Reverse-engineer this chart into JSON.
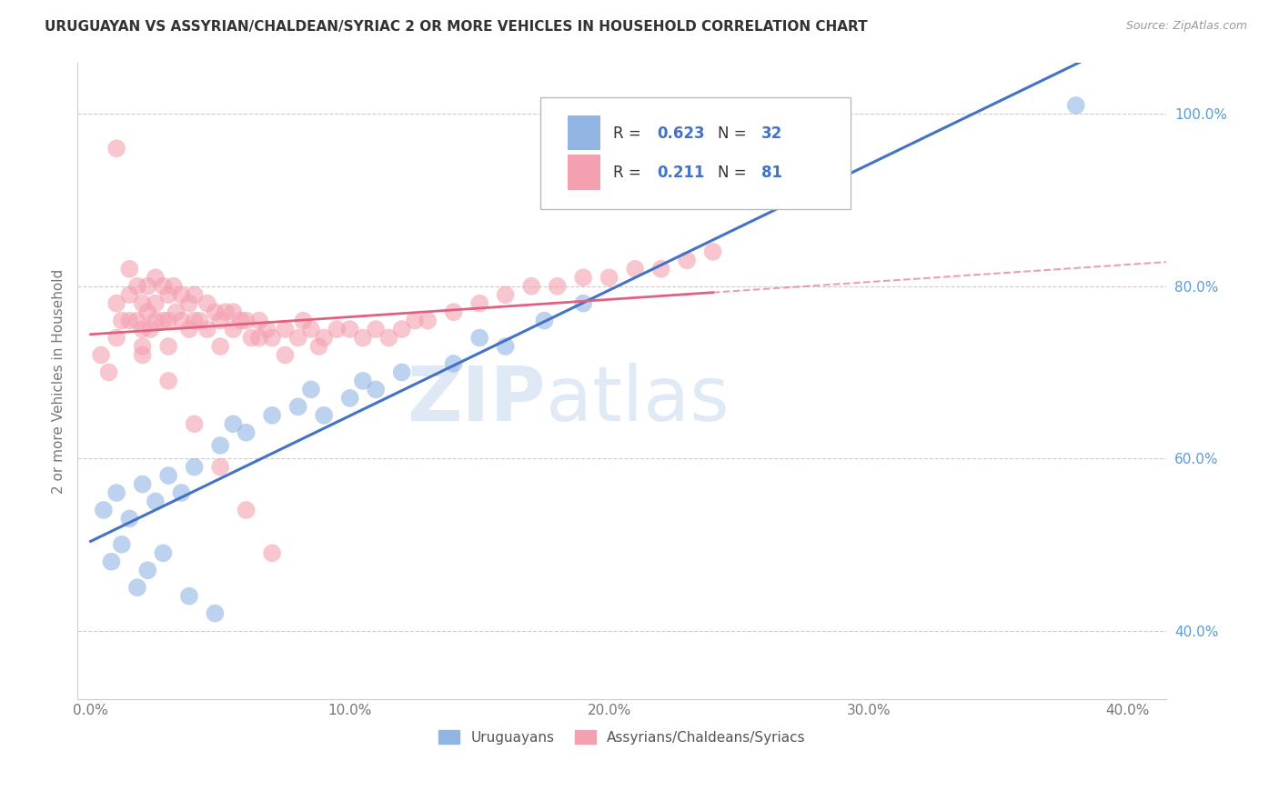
{
  "title": "URUGUAYAN VS ASSYRIAN/CHALDEAN/SYRIAC 2 OR MORE VEHICLES IN HOUSEHOLD CORRELATION CHART",
  "source": "Source: ZipAtlas.com",
  "ylabel": "2 or more Vehicles in Household",
  "xlim": [
    -0.005,
    0.415
  ],
  "ylim": [
    0.32,
    1.06
  ],
  "watermark_zip": "ZIP",
  "watermark_atlas": "atlas",
  "blue_R": "0.623",
  "blue_N": "32",
  "pink_R": "0.211",
  "pink_N": "81",
  "blue_color": "#92B4E3",
  "pink_color": "#F4A0B0",
  "blue_line_color": "#4472C4",
  "pink_line_color": "#E06080",
  "blue_label": "Uruguayans",
  "pink_label": "Assyrians/Chaldeans/Syriacs",
  "blue_scatter_x": [
    0.005,
    0.01,
    0.015,
    0.02,
    0.025,
    0.03,
    0.035,
    0.04,
    0.05,
    0.055,
    0.06,
    0.07,
    0.08,
    0.085,
    0.09,
    0.1,
    0.105,
    0.11,
    0.12,
    0.14,
    0.15,
    0.16,
    0.175,
    0.19,
    0.008,
    0.012,
    0.018,
    0.022,
    0.028,
    0.038,
    0.048,
    0.38
  ],
  "blue_scatter_y": [
    0.54,
    0.56,
    0.53,
    0.57,
    0.55,
    0.58,
    0.56,
    0.59,
    0.615,
    0.64,
    0.63,
    0.65,
    0.66,
    0.68,
    0.65,
    0.67,
    0.69,
    0.68,
    0.7,
    0.71,
    0.74,
    0.73,
    0.76,
    0.78,
    0.48,
    0.5,
    0.45,
    0.47,
    0.49,
    0.44,
    0.42,
    1.01
  ],
  "pink_scatter_x": [
    0.004,
    0.007,
    0.01,
    0.01,
    0.012,
    0.015,
    0.015,
    0.015,
    0.018,
    0.018,
    0.02,
    0.02,
    0.02,
    0.022,
    0.022,
    0.023,
    0.025,
    0.025,
    0.025,
    0.028,
    0.028,
    0.03,
    0.03,
    0.03,
    0.032,
    0.033,
    0.035,
    0.035,
    0.038,
    0.038,
    0.04,
    0.04,
    0.042,
    0.045,
    0.045,
    0.048,
    0.05,
    0.05,
    0.052,
    0.055,
    0.055,
    0.058,
    0.06,
    0.062,
    0.065,
    0.065,
    0.068,
    0.07,
    0.075,
    0.075,
    0.08,
    0.082,
    0.085,
    0.088,
    0.09,
    0.095,
    0.1,
    0.105,
    0.11,
    0.115,
    0.12,
    0.125,
    0.13,
    0.14,
    0.15,
    0.16,
    0.17,
    0.18,
    0.19,
    0.2,
    0.21,
    0.22,
    0.23,
    0.24,
    0.01,
    0.02,
    0.03,
    0.04,
    0.05,
    0.06,
    0.07
  ],
  "pink_scatter_y": [
    0.72,
    0.7,
    0.74,
    0.78,
    0.76,
    0.82,
    0.79,
    0.76,
    0.8,
    0.76,
    0.78,
    0.75,
    0.72,
    0.8,
    0.77,
    0.75,
    0.81,
    0.78,
    0.76,
    0.8,
    0.76,
    0.79,
    0.76,
    0.73,
    0.8,
    0.77,
    0.79,
    0.76,
    0.78,
    0.75,
    0.79,
    0.76,
    0.76,
    0.78,
    0.75,
    0.77,
    0.76,
    0.73,
    0.77,
    0.77,
    0.75,
    0.76,
    0.76,
    0.74,
    0.76,
    0.74,
    0.75,
    0.74,
    0.75,
    0.72,
    0.74,
    0.76,
    0.75,
    0.73,
    0.74,
    0.75,
    0.75,
    0.74,
    0.75,
    0.74,
    0.75,
    0.76,
    0.76,
    0.77,
    0.78,
    0.79,
    0.8,
    0.8,
    0.81,
    0.81,
    0.82,
    0.82,
    0.83,
    0.84,
    0.96,
    0.73,
    0.69,
    0.64,
    0.59,
    0.54,
    0.49
  ],
  "xticks": [
    0.0,
    0.1,
    0.2,
    0.3,
    0.4
  ],
  "yticks": [
    0.4,
    0.6,
    0.8,
    1.0
  ],
  "grid_color": "#CCCCCC",
  "title_color": "#333333",
  "tick_color": "#777777",
  "right_tick_color": "#5B9BD5"
}
